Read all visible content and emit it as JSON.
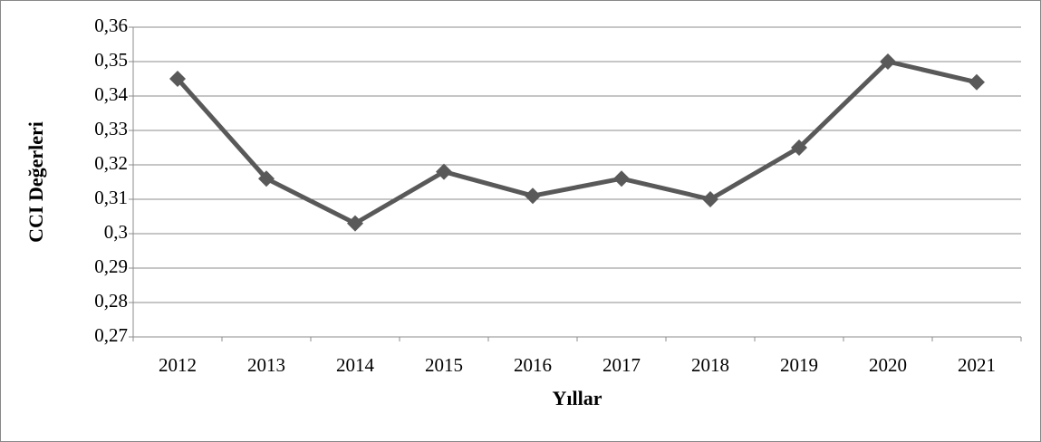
{
  "chart_data": {
    "type": "line",
    "x_label": "Yıllar",
    "y_label": "CCI Değerleri",
    "categories": [
      "2012",
      "2013",
      "2014",
      "2015",
      "2016",
      "2017",
      "2018",
      "2019",
      "2020",
      "2021"
    ],
    "values": [
      0.345,
      0.316,
      0.303,
      0.318,
      0.311,
      0.316,
      0.31,
      0.325,
      0.35,
      0.344
    ],
    "color": "#595959",
    "ylim": [
      0.27,
      0.36
    ],
    "yticks": [
      {
        "value": 0.27,
        "label": "0,27"
      },
      {
        "value": 0.28,
        "label": "0,28"
      },
      {
        "value": 0.29,
        "label": "0,29"
      },
      {
        "value": 0.3,
        "label": "0,3"
      },
      {
        "value": 0.31,
        "label": "0,31"
      },
      {
        "value": 0.32,
        "label": "0,32"
      },
      {
        "value": 0.33,
        "label": "0,33"
      },
      {
        "value": 0.34,
        "label": "0,34"
      },
      {
        "value": 0.35,
        "label": "0,35"
      },
      {
        "value": 0.36,
        "label": "0,36"
      }
    ],
    "grid": true
  }
}
